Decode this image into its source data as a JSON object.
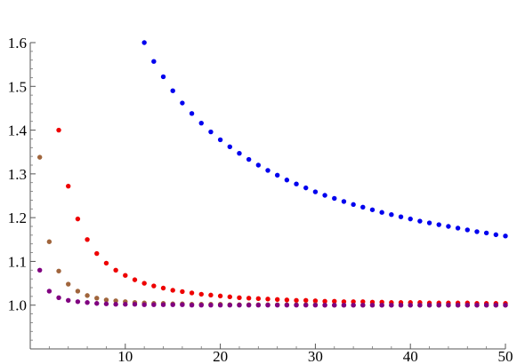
{
  "chart_data": {
    "type": "scatter",
    "title": "",
    "xlabel": "",
    "ylabel": "",
    "xlim": [
      0,
      50
    ],
    "ylim": [
      0.9,
      1.6
    ],
    "grid": false,
    "legend": "none",
    "x_ticks": [
      10,
      20,
      30,
      40,
      50
    ],
    "x_tick_labels": [
      "10",
      "20",
      "30",
      "40",
      "50"
    ],
    "y_ticks": [
      1.0,
      1.1,
      1.2,
      1.3,
      1.4,
      1.5,
      1.6
    ],
    "y_tick_labels": [
      "1.0",
      "1.1",
      "1.2",
      "1.3",
      "1.4",
      "1.5",
      "1.6"
    ],
    "series": [
      {
        "color": "#0000ee",
        "x": [
          12,
          13,
          14,
          15,
          16,
          17,
          18,
          19,
          20,
          21,
          22,
          23,
          24,
          25,
          26,
          27,
          28,
          29,
          30,
          31,
          32,
          33,
          34,
          35,
          36,
          37,
          38,
          39,
          40,
          41,
          42,
          43,
          44,
          45,
          46,
          47,
          48,
          49,
          50
        ],
        "y": [
          1.6,
          1.557,
          1.522,
          1.49,
          1.462,
          1.438,
          1.416,
          1.396,
          1.378,
          1.362,
          1.347,
          1.333,
          1.32,
          1.308,
          1.297,
          1.286,
          1.277,
          1.268,
          1.259,
          1.251,
          1.244,
          1.237,
          1.23,
          1.224,
          1.218,
          1.212,
          1.207,
          1.202,
          1.197,
          1.192,
          1.188,
          1.184,
          1.18,
          1.176,
          1.172,
          1.168,
          1.165,
          1.161,
          1.158
        ]
      },
      {
        "color": "#ee0000",
        "x": [
          3,
          4,
          5,
          6,
          7,
          8,
          9,
          10,
          11,
          12,
          13,
          14,
          15,
          16,
          17,
          18,
          19,
          20,
          21,
          22,
          23,
          24,
          25,
          26,
          27,
          28,
          29,
          30,
          31,
          32,
          33,
          34,
          35,
          36,
          37,
          38,
          39,
          40,
          41,
          42,
          43,
          44,
          45,
          46,
          47,
          48,
          49,
          50
        ],
        "y": [
          1.4,
          1.272,
          1.197,
          1.15,
          1.118,
          1.096,
          1.08,
          1.068,
          1.058,
          1.05,
          1.044,
          1.039,
          1.034,
          1.031,
          1.028,
          1.025,
          1.023,
          1.021,
          1.019,
          1.017,
          1.016,
          1.015,
          1.014,
          1.013,
          1.012,
          1.011,
          1.011,
          1.01,
          1.009,
          1.009,
          1.008,
          1.008,
          1.008,
          1.007,
          1.007,
          1.006,
          1.006,
          1.006,
          1.006,
          1.005,
          1.005,
          1.005,
          1.005,
          1.005,
          1.004,
          1.004,
          1.004,
          1.004
        ]
      },
      {
        "color": "#a0653c",
        "x": [
          1,
          2,
          3,
          4,
          5,
          6,
          7,
          8,
          9,
          10,
          11,
          12,
          13,
          14,
          15,
          16,
          17,
          18,
          19,
          20,
          21,
          22,
          23,
          24,
          25,
          26,
          27,
          28,
          29,
          30,
          31,
          32,
          33,
          34,
          35,
          36,
          37,
          38,
          39,
          40,
          41,
          42,
          43,
          44,
          45,
          46,
          47,
          48,
          49,
          50
        ],
        "y": [
          1.338,
          1.145,
          1.078,
          1.048,
          1.032,
          1.022,
          1.016,
          1.012,
          1.01,
          1.008,
          1.006,
          1.005,
          1.004,
          1.004,
          1.003,
          1.003,
          1.002,
          1.002,
          1.002,
          1.002,
          1.001,
          1.001,
          1.001,
          1.001,
          1.001,
          1.001,
          1.001,
          1.001,
          1.001,
          1.001,
          1.0,
          1.0,
          1.0,
          1.0,
          1.0,
          1.0,
          1.0,
          1.0,
          1.0,
          1.0,
          1.0,
          1.0,
          1.0,
          1.0,
          1.0,
          1.0,
          1.0,
          1.0,
          1.0,
          1.0
        ]
      },
      {
        "color": "#800080",
        "x": [
          1,
          2,
          3,
          4,
          5,
          6,
          7,
          8,
          9,
          10,
          11,
          12,
          13,
          14,
          15,
          16,
          17,
          18,
          19,
          20,
          21,
          22,
          23,
          24,
          25,
          26,
          27,
          28,
          29,
          30,
          31,
          32,
          33,
          34,
          35,
          36,
          37,
          38,
          39,
          40,
          41,
          42,
          43,
          44,
          45,
          46,
          47,
          48,
          49,
          50
        ],
        "y": [
          1.08,
          1.032,
          1.017,
          1.011,
          1.008,
          1.006,
          1.004,
          1.003,
          1.002,
          1.002,
          1.002,
          1.001,
          1.001,
          1.001,
          1.001,
          1.001,
          1.0,
          1.0,
          1.0,
          1.0,
          1.0,
          1.0,
          1.0,
          1.0,
          1.0,
          1.0,
          1.0,
          1.0,
          1.0,
          1.0,
          1.0,
          1.0,
          1.0,
          1.0,
          1.0,
          1.0,
          1.0,
          1.0,
          1.0,
          1.0,
          1.0,
          1.0,
          1.0,
          1.0,
          1.0,
          1.0,
          1.0,
          1.0,
          1.0,
          1.0
        ]
      }
    ]
  }
}
